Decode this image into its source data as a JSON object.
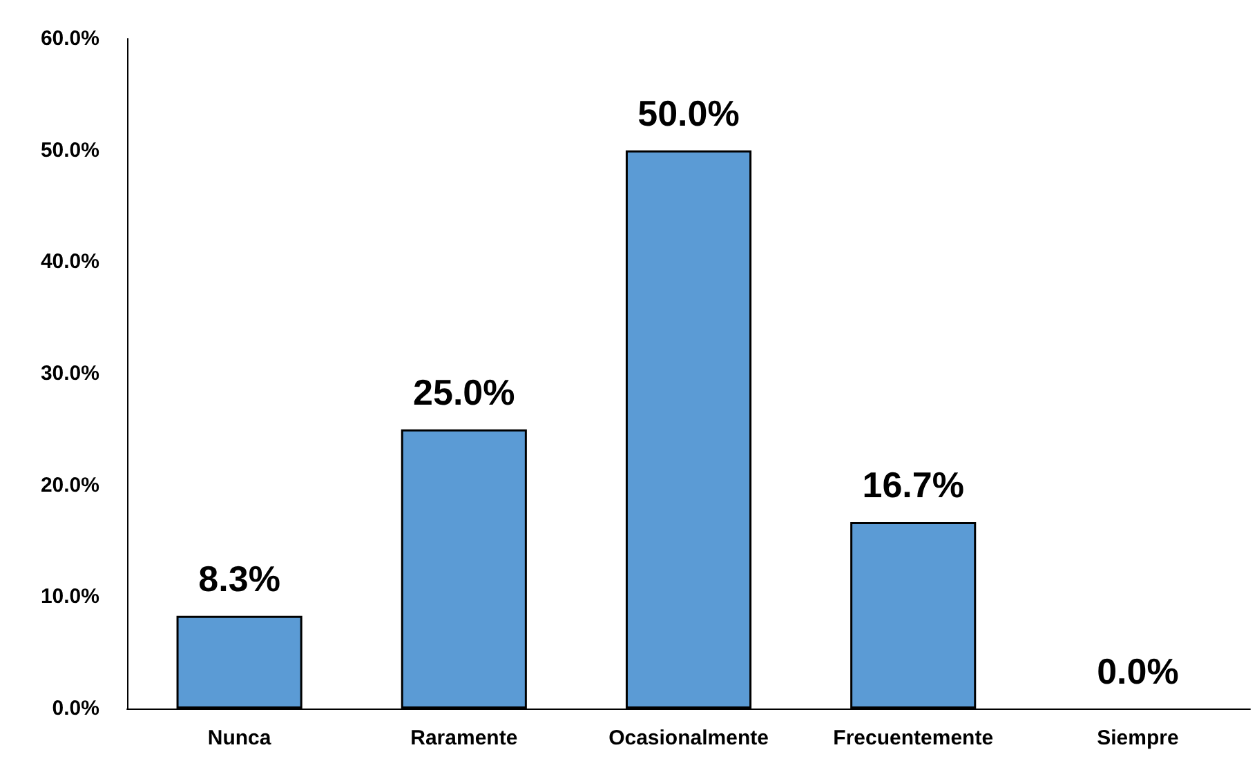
{
  "chart_data": {
    "type": "bar",
    "categories": [
      "Nunca",
      "Raramente",
      "Ocasionalmente",
      "Frecuentemente",
      "Siempre"
    ],
    "values": [
      8.3,
      25.0,
      50.0,
      16.7,
      0.0
    ],
    "value_labels": [
      "8.3%",
      "25.0%",
      "50.0%",
      "16.7%",
      "0.0%"
    ],
    "color": "#5b9bd5",
    "ylim": [
      0,
      60
    ],
    "yticks": [
      {
        "value": 0,
        "label": "0.0%"
      },
      {
        "value": 10,
        "label": "10.0%"
      },
      {
        "value": 20,
        "label": "20.0%"
      },
      {
        "value": 30,
        "label": "30.0%"
      },
      {
        "value": 40,
        "label": "40.0%"
      },
      {
        "value": 50,
        "label": "50.0%"
      },
      {
        "value": 60,
        "label": "60.0%"
      }
    ],
    "grid": false
  }
}
